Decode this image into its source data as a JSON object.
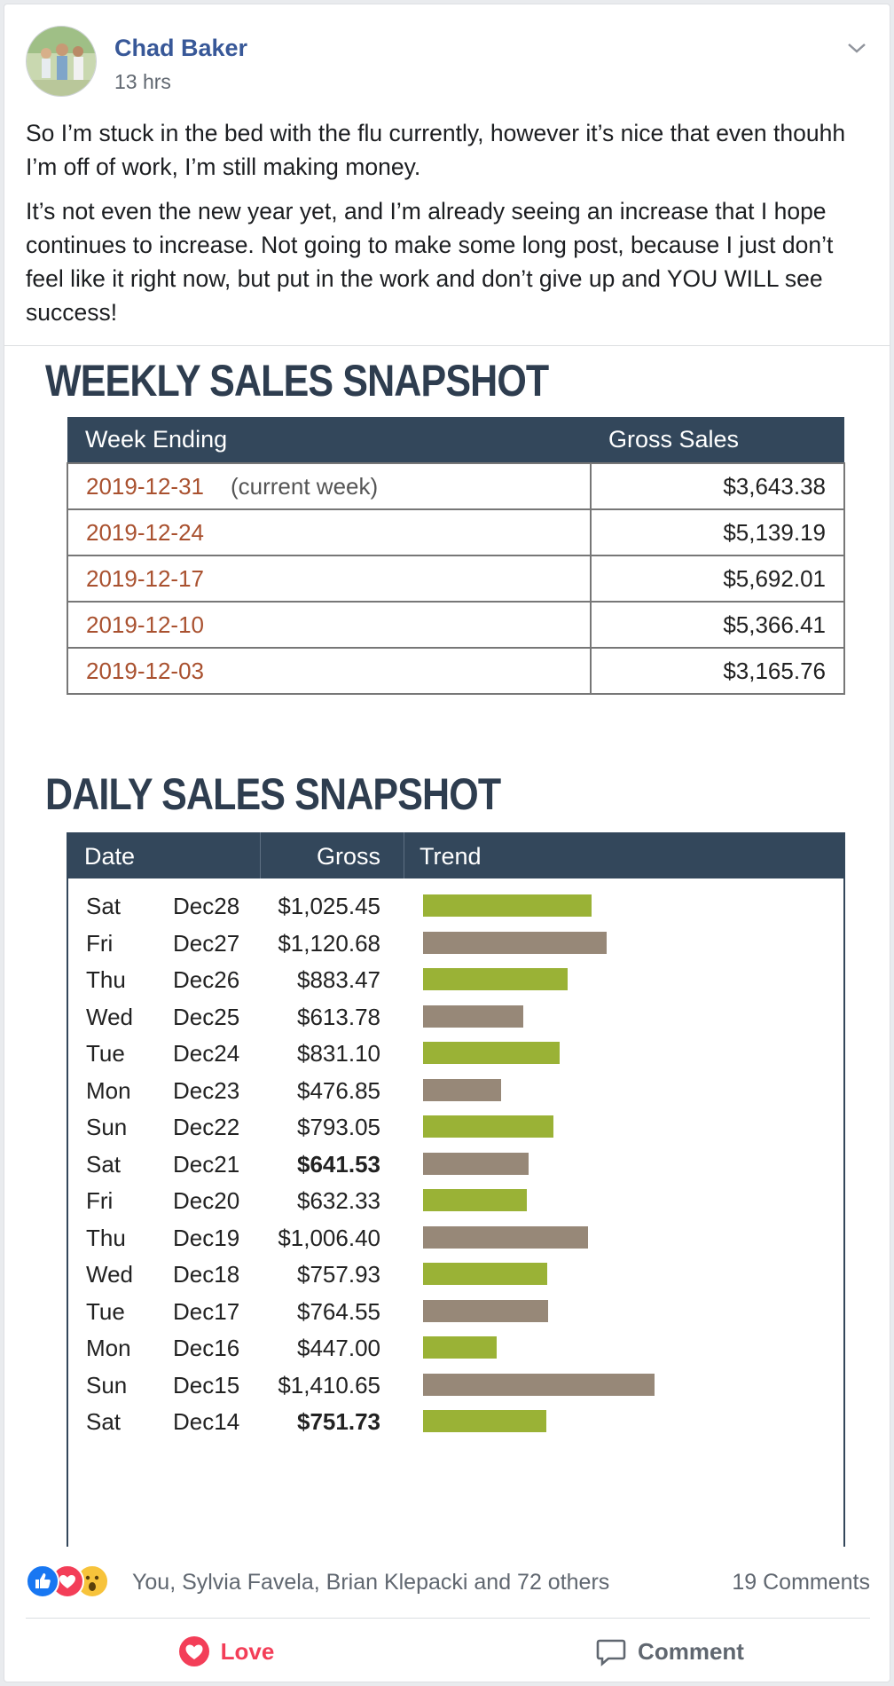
{
  "post": {
    "author": "Chad Baker",
    "time": "13 hrs",
    "paragraphs": [
      "So I’m stuck in the bed with the flu currently, however it’s nice that even thouhh I’m off of work, I’m still making money.",
      "It’s not even the new year yet, and I’m already seeing an increase that I hope continues to increase. Not going to make some long post, because I just don’t feel like it right now, but put in the work and don’t give up and YOU WILL see success!"
    ]
  },
  "weekly": {
    "title": "WEEKLY SALES SNAPSHOT",
    "headers": [
      "Week Ending",
      "Gross Sales"
    ],
    "rows": [
      {
        "date": "2019-12-31",
        "note": "(current week)",
        "sales": "$3,643.38"
      },
      {
        "date": "2019-12-24",
        "note": "",
        "sales": "$5,139.19"
      },
      {
        "date": "2019-12-17",
        "note": "",
        "sales": "$5,692.01"
      },
      {
        "date": "2019-12-10",
        "note": "",
        "sales": "$5,366.41"
      },
      {
        "date": "2019-12-03",
        "note": "",
        "sales": "$3,165.76"
      }
    ]
  },
  "daily": {
    "title": "DAILY SALES SNAPSHOT",
    "headers": [
      "Date",
      "Gross",
      "Trend"
    ],
    "colors": {
      "green": "#9ab236",
      "brown": "#978878"
    },
    "rows": [
      {
        "day": "Sat",
        "date": "Dec28",
        "gross": "$1,025.45",
        "value": 1025.45,
        "color": "green",
        "bold": false
      },
      {
        "day": "Fri",
        "date": "Dec27",
        "gross": "$1,120.68",
        "value": 1120.68,
        "color": "brown",
        "bold": false
      },
      {
        "day": "Thu",
        "date": "Dec26",
        "gross": "$883.47",
        "value": 883.47,
        "color": "green",
        "bold": false
      },
      {
        "day": "Wed",
        "date": "Dec25",
        "gross": "$613.78",
        "value": 613.78,
        "color": "brown",
        "bold": false
      },
      {
        "day": "Tue",
        "date": "Dec24",
        "gross": "$831.10",
        "value": 831.1,
        "color": "green",
        "bold": false
      },
      {
        "day": "Mon",
        "date": "Dec23",
        "gross": "$476.85",
        "value": 476.85,
        "color": "brown",
        "bold": false
      },
      {
        "day": "Sun",
        "date": "Dec22",
        "gross": "$793.05",
        "value": 793.05,
        "color": "green",
        "bold": false
      },
      {
        "day": "Sat",
        "date": "Dec21",
        "gross": "$641.53",
        "value": 641.53,
        "color": "brown",
        "bold": true
      },
      {
        "day": "Fri",
        "date": "Dec20",
        "gross": "$632.33",
        "value": 632.33,
        "color": "green",
        "bold": false
      },
      {
        "day": "Thu",
        "date": "Dec19",
        "gross": "$1,006.40",
        "value": 1006.4,
        "color": "brown",
        "bold": false
      },
      {
        "day": "Wed",
        "date": "Dec18",
        "gross": "$757.93",
        "value": 757.93,
        "color": "green",
        "bold": false
      },
      {
        "day": "Tue",
        "date": "Dec17",
        "gross": "$764.55",
        "value": 764.55,
        "color": "brown",
        "bold": false
      },
      {
        "day": "Mon",
        "date": "Dec16",
        "gross": "$447.00",
        "value": 447.0,
        "color": "green",
        "bold": false
      },
      {
        "day": "Sun",
        "date": "Dec15",
        "gross": "$1,410.65",
        "value": 1410.65,
        "color": "brown",
        "bold": false
      },
      {
        "day": "Sat",
        "date": "Dec14",
        "gross": "$751.73",
        "value": 751.73,
        "color": "green",
        "bold": true
      }
    ]
  },
  "reactions": {
    "icons": [
      "like-icon",
      "love-icon",
      "wow-icon"
    ],
    "names": "You, Sylvia Favela, Brian Klepacki and 72 others",
    "comments": "19 Comments"
  },
  "actions": {
    "love_label": "Love",
    "comment_label": "Comment"
  }
}
